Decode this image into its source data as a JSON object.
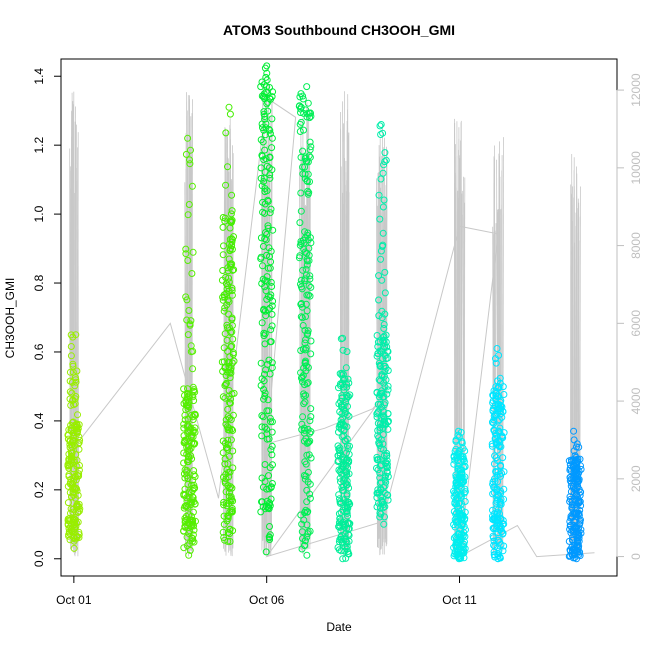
{
  "chart_data": {
    "type": "scatter",
    "title": "ATOM3 Southbound CH3OOH_GMI",
    "xlabel": "Date",
    "ylabel": "CH3OOH_GMI",
    "x_ticks": [
      "Oct 01",
      "Oct 06",
      "Oct 11"
    ],
    "y_ticks": [
      "0.0",
      "0.2",
      "0.4",
      "0.6",
      "0.8",
      "1.0",
      "1.2",
      "1.4"
    ],
    "y2_ticks": [
      "0",
      "2000",
      "4000",
      "6000",
      "8000",
      "10000",
      "12000"
    ],
    "xlim": [
      "2017-09-30T16:00",
      "2017-10-15T02:00"
    ],
    "ylim": [
      -0.05,
      1.45
    ],
    "y2lim": [
      -500,
      12800
    ],
    "grid": false,
    "colors": {
      "altitude_line": "#c8c8c8",
      "frame": "#000000",
      "right_axis": "#bfbfbf"
    },
    "altitude_line_path": [
      [
        "2017-10-01T00:00",
        2800
      ],
      [
        "2017-10-03T12:00",
        6000
      ],
      [
        "2017-10-04T18:00",
        1500
      ],
      [
        "2017-10-06T00:00",
        11800
      ],
      [
        "2017-10-06T18:00",
        11300
      ],
      [
        "2017-10-06T00:00",
        2900
      ],
      [
        "2017-10-07T12:00",
        3300
      ],
      [
        "2017-10-08T18:00",
        3800
      ],
      [
        "2017-10-09T00:00",
        4100
      ],
      [
        "2017-10-06T00:00",
        0
      ],
      [
        "2017-10-09T00:00",
        900
      ],
      [
        "2017-10-11T00:00",
        8500
      ],
      [
        "2017-10-12T00:00",
        8300
      ],
      [
        "2017-10-11T00:00",
        0
      ],
      [
        "2017-10-12T12:00",
        800
      ],
      [
        "2017-10-13T00:00",
        0
      ],
      [
        "2017-10-14T12:00",
        100
      ]
    ],
    "series": [
      {
        "date": "2017-10-01T00:00",
        "color": "#99ee00",
        "y_min": 0.03,
        "y_max": 0.65,
        "alt_max": 12100,
        "dense_min": 0.05,
        "dense_max": 0.4
      },
      {
        "date": "2017-10-04T00:00",
        "color": "#55ee00",
        "y_min": 0.01,
        "y_max": 1.22,
        "alt_max": 12300,
        "dense_min": 0.03,
        "dense_max": 0.5
      },
      {
        "date": "2017-10-05T00:00",
        "color": "#44ee00",
        "y_min": 0.05,
        "y_max": 1.31,
        "alt_max": 11300,
        "dense_min": 0.06,
        "dense_max": 1.0
      },
      {
        "date": "2017-10-06T00:00",
        "color": "#00ee33",
        "y_min": 0.02,
        "y_max": 1.43,
        "alt_max": 12400,
        "dense_min": 0.05,
        "dense_max": 1.4
      },
      {
        "date": "2017-10-07T00:00",
        "color": "#00ee55",
        "y_min": 0.01,
        "y_max": 1.37,
        "alt_max": 11900,
        "dense_min": 0.03,
        "dense_max": 1.35
      },
      {
        "date": "2017-10-08T00:00",
        "color": "#00ee99",
        "y_min": 0.0,
        "y_max": 0.64,
        "alt_max": 12000,
        "dense_min": 0.0,
        "dense_max": 0.55
      },
      {
        "date": "2017-10-09T00:00",
        "color": "#00eeaa",
        "y_min": 0.1,
        "y_max": 1.26,
        "alt_max": 11200,
        "dense_min": 0.12,
        "dense_max": 0.65
      },
      {
        "date": "2017-10-11T00:00",
        "color": "#00eeee",
        "y_min": 0.0,
        "y_max": 0.37,
        "alt_max": 11500,
        "dense_min": 0.0,
        "dense_max": 0.32
      },
      {
        "date": "2017-10-12T00:00",
        "color": "#00e5ff",
        "y_min": 0.0,
        "y_max": 0.61,
        "alt_max": 10900,
        "dense_min": 0.0,
        "dense_max": 0.5
      },
      {
        "date": "2017-10-14T00:00",
        "color": "#0099ff",
        "y_min": 0.0,
        "y_max": 0.37,
        "alt_max": 10500,
        "dense_min": 0.0,
        "dense_max": 0.3
      }
    ]
  }
}
